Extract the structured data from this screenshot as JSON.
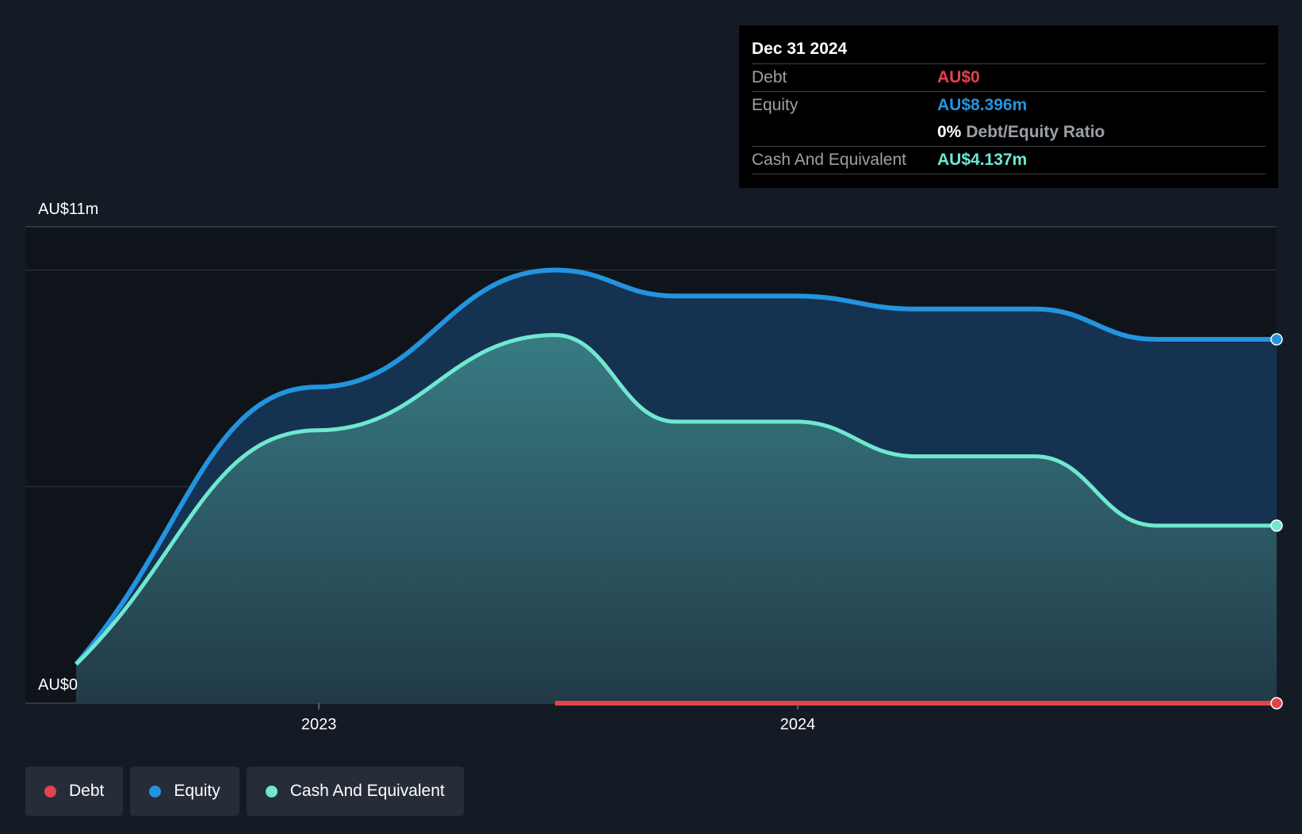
{
  "colors": {
    "debt": "#e5424d",
    "equity": "#2394df",
    "cash": "#6fe8d0",
    "background": "#151b24",
    "plot_background": "#0f141b"
  },
  "chart_data": {
    "type": "area",
    "title": "",
    "xlabel": "",
    "ylabel": "",
    "y_min_label": "AU$0",
    "y_max_label": "AU$11m",
    "ylim": [
      0,
      11
    ],
    "y_unit": "AU$m",
    "x_ticks": [
      "2023",
      "2024"
    ],
    "x": [
      "2022-06-30",
      "2022-12-31",
      "2023-06-30",
      "2023-09-30",
      "2023-12-31",
      "2024-03-31",
      "2024-06-30",
      "2024-09-30",
      "2024-12-31"
    ],
    "series": [
      {
        "name": "Debt",
        "values": [
          null,
          null,
          0,
          0,
          0,
          0,
          0,
          0,
          0
        ]
      },
      {
        "name": "Equity",
        "values": [
          0.9,
          7.3,
          10.0,
          9.4,
          9.4,
          9.1,
          9.1,
          8.4,
          8.4
        ]
      },
      {
        "name": "Cash And Equivalent",
        "values": [
          0.9,
          6.3,
          8.5,
          6.5,
          6.5,
          5.7,
          5.7,
          4.1,
          4.1
        ]
      }
    ]
  },
  "tooltip": {
    "date": "Dec 31 2024",
    "debt_label": "Debt",
    "debt_value": "AU$0",
    "equity_label": "Equity",
    "equity_value": "AU$8.396m",
    "ratio_value": "0%",
    "ratio_label": "Debt/Equity Ratio",
    "cash_label": "Cash And Equivalent",
    "cash_value": "AU$4.137m"
  },
  "legend": {
    "items": [
      {
        "label": "Debt",
        "color": "#e5424d"
      },
      {
        "label": "Equity",
        "color": "#2394df"
      },
      {
        "label": "Cash And Equivalent",
        "color": "#6fe8d0"
      }
    ]
  }
}
